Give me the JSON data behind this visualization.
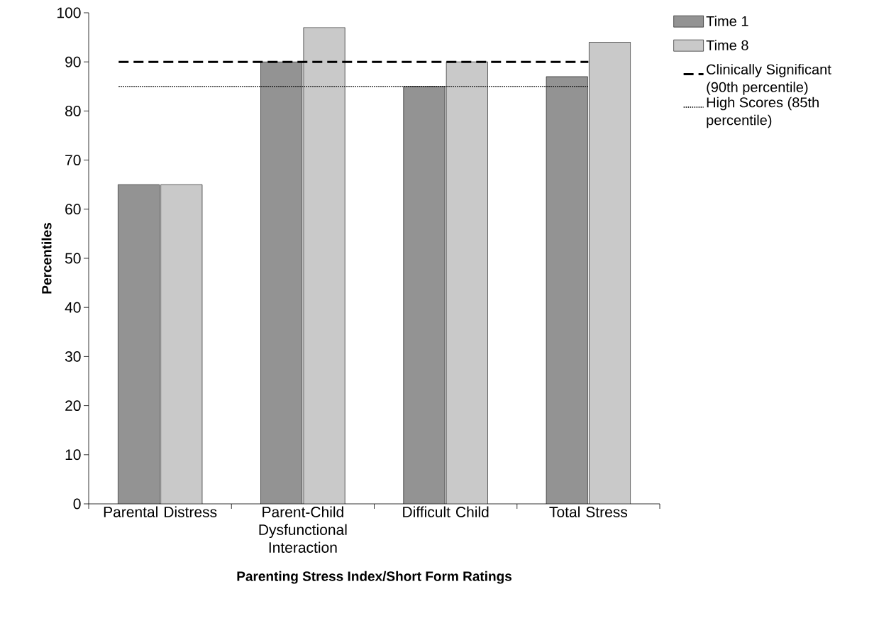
{
  "chart_data": {
    "type": "bar",
    "xlabel": "Parenting Stress Index/Short Form Ratings",
    "ylabel": "Percentiles",
    "categories": [
      "Parental Distress",
      "Parent-Child Dysfunctional Interaction",
      "Difficult Child",
      "Total Stress"
    ],
    "series": [
      {
        "name": "Time 1",
        "color": "#939393",
        "values": [
          65,
          90,
          85,
          87
        ]
      },
      {
        "name": "Time 8",
        "color": "#c9c9c9",
        "values": [
          65,
          97,
          90,
          94
        ]
      }
    ],
    "ref_lines": [
      {
        "axis": "y",
        "value": 90,
        "label": "Clinically Significant (90th percentile)",
        "color": "#000000",
        "line_style": "dashed"
      },
      {
        "axis": "y",
        "value": 85,
        "label": "High Scores (85th percentile)",
        "color": "#000000",
        "line_style": "dotted"
      }
    ],
    "ylim": [
      0,
      100
    ],
    "yticks": [
      0,
      10,
      20,
      30,
      40,
      50,
      60,
      70,
      80,
      90,
      100
    ],
    "grid": false,
    "legend": "right"
  }
}
